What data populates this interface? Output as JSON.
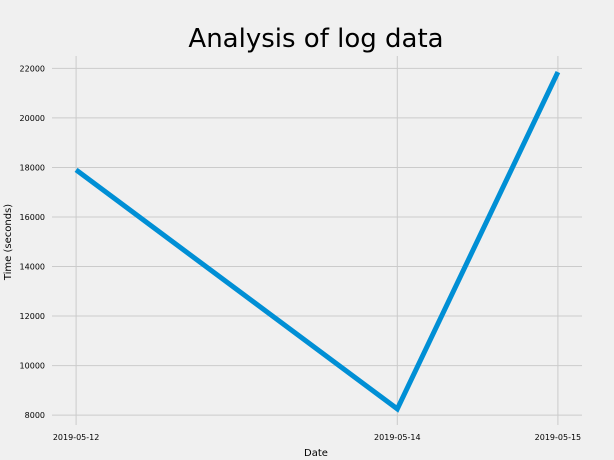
{
  "chart_data": {
    "type": "line",
    "title": "Analysis of log data",
    "xlabel": "Date",
    "ylabel": "Time (seconds)",
    "x": [
      "2019-05-12",
      "2019-05-14",
      "2019-05-15"
    ],
    "x_ticks": [
      "2019-05-12",
      "2019-05-14",
      "2019-05-15"
    ],
    "y_ticks": [
      8000,
      10000,
      12000,
      14000,
      16000,
      18000,
      20000,
      22000
    ],
    "ylim": [
      7600,
      22500
    ],
    "series": [
      {
        "values": [
          17900,
          8250,
          21850
        ],
        "color": "#008fd5"
      }
    ],
    "grid": true,
    "background": "#f0f0f0"
  }
}
